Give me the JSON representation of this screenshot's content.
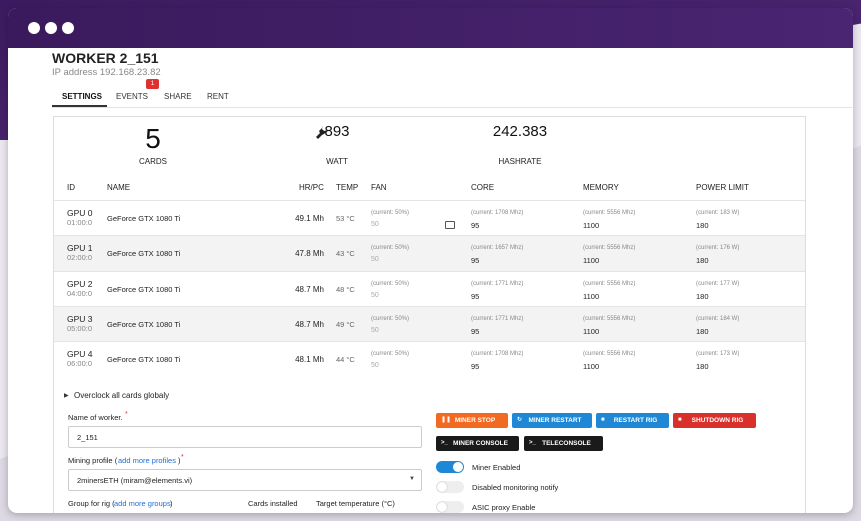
{
  "worker": {
    "title": "WORKER 2_151",
    "ip": "IP address 192.168.23.82"
  },
  "tabs": [
    {
      "label": "SETTINGS"
    },
    {
      "label": "EVENTS",
      "badge": "1"
    },
    {
      "label": "SHARE"
    },
    {
      "label": "RENT"
    }
  ],
  "stats": [
    {
      "value": "5",
      "label": "CARDS"
    },
    {
      "value": "893",
      "label": "WATT"
    },
    {
      "value": "242.383",
      "label": "HASHRATE"
    }
  ],
  "table": {
    "headers": [
      "ID",
      "NAME",
      "HR/PC",
      "TEMP",
      "FAN",
      "CORE",
      "MEMORY",
      "POWER LIMIT"
    ],
    "rows": [
      {
        "id": "GPU 0",
        "time": "01:00:0",
        "name": "GeForce GTX 1080 Ti",
        "hr": "49.1 Mh",
        "temp": "53 °C",
        "fan_current": "(current: 50%)",
        "fan": "50",
        "core_current": "(current: 1708 Mhz)",
        "core": "95",
        "memory_current": "(current: 5556 Mhz)",
        "memory": "1100",
        "power_current": "(current: 183 W)",
        "power": "180"
      },
      {
        "id": "GPU 1",
        "time": "02:00:0",
        "name": "GeForce GTX 1080 Ti",
        "hr": "47.8 Mh",
        "temp": "43 °C",
        "fan_current": "(current: 50%)",
        "fan": "50",
        "core_current": "(current: 1657 Mhz)",
        "core": "95",
        "memory_current": "(current: 5556 Mhz)",
        "memory": "1100",
        "power_current": "(current: 176 W)",
        "power": "180"
      },
      {
        "id": "GPU 2",
        "time": "04:00:0",
        "name": "GeForce GTX 1080 Ti",
        "hr": "48.7 Mh",
        "temp": "48 °C",
        "fan_current": "(current: 50%)",
        "fan": "50",
        "core_current": "(current: 1771 Mhz)",
        "core": "95",
        "memory_current": "(current: 5556 Mhz)",
        "memory": "1100",
        "power_current": "(current: 177 W)",
        "power": "180"
      },
      {
        "id": "GPU 3",
        "time": "05:00:0",
        "name": "GeForce GTX 1080 Ti",
        "hr": "48.7 Mh",
        "temp": "49 °C",
        "fan_current": "(current: 50%)",
        "fan": "50",
        "core_current": "(current: 1771 Mhz)",
        "core": "95",
        "memory_current": "(current: 5556 Mhz)",
        "memory": "1100",
        "power_current": "(current: 184 W)",
        "power": "180"
      },
      {
        "id": "GPU 4",
        "time": "06:00:0",
        "name": "GeForce GTX 1080 Ti",
        "hr": "48.1 Mh",
        "temp": "44 °C",
        "fan_current": "(current: 50%)",
        "fan": "50",
        "core_current": "(current: 1708 Mhz)",
        "core": "95",
        "memory_current": "(current: 5556 Mhz)",
        "memory": "1100",
        "power_current": "(current: 173 W)",
        "power": "180"
      }
    ]
  },
  "form": {
    "overclock": "Overclock all cards globaly",
    "name_label": "Name of worker.",
    "required": "*",
    "name_value": "2_151",
    "profile_label": "Mining profile (",
    "profile_link": "add more profiles",
    "profile_close": ")",
    "profile_value": "2minersETH (miram@elements.vi)",
    "group_label": "Group for rig (",
    "group_link": "add more groups",
    "group_close": ")",
    "cards_label": "Cards installed",
    "temp_label": "Target temperature (°C)"
  },
  "buttons": [
    "MINER STOP",
    "MINER RESTART",
    "RESTART RIG",
    "SHUTDOWN RIG",
    "MINER CONSOLE",
    "TELECONSOLE"
  ],
  "toggles": [
    {
      "label": "Miner Enabled",
      "on": true
    },
    {
      "label": "Disabled monitoring notify",
      "on": false
    },
    {
      "label": "ASIC proxy Enable",
      "on": false
    }
  ]
}
